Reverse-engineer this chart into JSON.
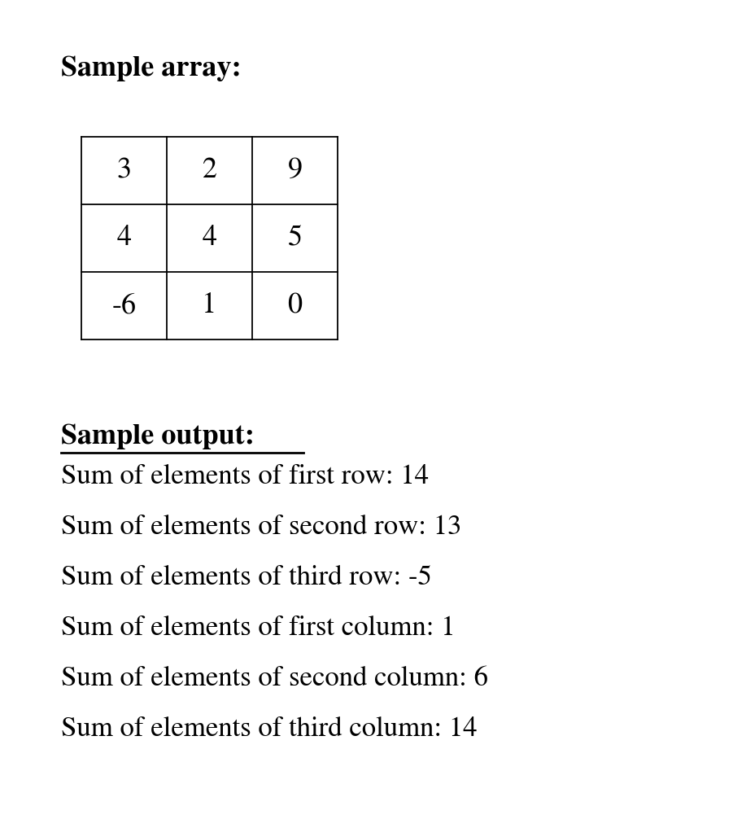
{
  "title": "Sample array:",
  "title_fontsize": 26,
  "matrix": [
    [
      "3",
      "2",
      "9"
    ],
    [
      "4",
      "4",
      "5"
    ],
    [
      "-6",
      "1",
      "0"
    ]
  ],
  "output_title": "Sample output:",
  "output_title_fontsize": 26,
  "output_lines": [
    "Sum of elements of first row: 14",
    "Sum of elements of second row: 13",
    "Sum of elements of third row: -5",
    "Sum of elements of first column: 1",
    "Sum of elements of second column: 6",
    "Sum of elements of third column: 14"
  ],
  "output_fontsize": 25,
  "background_color": "#ffffff",
  "text_color": "#000000",
  "line_color": "#000000",
  "cell_fontsize": 26,
  "fig_width": 9.17,
  "fig_height": 10.17,
  "dpi": 100
}
